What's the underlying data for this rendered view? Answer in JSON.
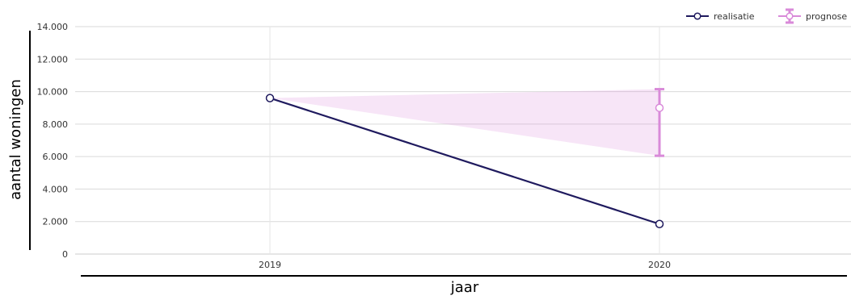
{
  "chart_data": {
    "type": "line",
    "title": "",
    "xlabel": "jaar",
    "ylabel": "aantal woningen",
    "categories": [
      "2019",
      "2020"
    ],
    "ylim": [
      0,
      14000
    ],
    "y_ticks": [
      {
        "value": 0,
        "label": "0"
      },
      {
        "value": 2000,
        "label": "2.000"
      },
      {
        "value": 4000,
        "label": "4.000"
      },
      {
        "value": 6000,
        "label": "6.000"
      },
      {
        "value": 8000,
        "label": "8.000"
      },
      {
        "value": 10000,
        "label": "10.000"
      },
      {
        "value": 12000,
        "label": "12.000"
      },
      {
        "value": 14000,
        "label": "14.000"
      }
    ],
    "grid": true,
    "legend_position": "top-right",
    "series": [
      {
        "name": "realisatie",
        "color": "#1f1a5e",
        "values": [
          9600,
          1850
        ]
      },
      {
        "name": "prognose",
        "color": "#d98ad9",
        "values": [
          9600,
          9000
        ],
        "error_low": [
          null,
          6050
        ],
        "error_high": [
          null,
          10150
        ]
      }
    ]
  }
}
